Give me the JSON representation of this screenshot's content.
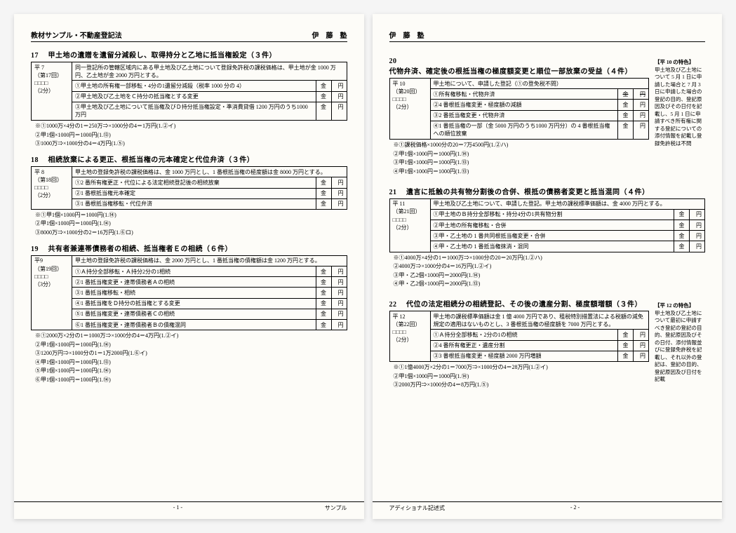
{
  "header": {
    "left_title": "教材サンプル・不動産登記法",
    "school": "伊　藤　塾"
  },
  "p1": {
    "s17": {
      "no": "17",
      "title": "甲土地の遺贈を遺留分減殺し、取得持分と乙地に抵当権設定（３件）",
      "meta": {
        "year": "平 7",
        "round": "（第17回）",
        "boxes": "□□□□",
        "time": "（2分）"
      },
      "preamble": "同一登記所の管轄区域内にある甲土地及び乙土地について登録免許税の課税価格は、甲土地が金 1000 万円、乙土地が金 2000 万円とする。",
      "rows": [
        {
          "n": "①",
          "t": "甲土地の所有権一部移転・4分の1遺留分減殺（税率 1000 分の 4）",
          "k": "金",
          "y": "円"
        },
        {
          "n": "②",
          "t": "甲土地及び乙土地をＣ持分の抵当権とする変更",
          "k": "金",
          "y": "円"
        },
        {
          "n": "③",
          "t": "甲土地及び乙土地について抵当権及びＤ持分抵当権設定・準消費貸借 1200 万円のうち1000 万円",
          "k": "金",
          "y": "円"
        }
      ],
      "notes": [
        "※①1000万×4分の1＝250万⇒×1000分の4＝1万円(1.②イ)",
        "②甲1個×1000円＝1000円(1.⑬)",
        "③1000万⇒×1000分の4＝4万円(1.⑤)"
      ]
    },
    "s18": {
      "no": "18",
      "title": "相続放棄による更正、根抵当権の元本確定と代位弁済（３件）",
      "meta": {
        "year": "平 8",
        "round": "（第18回）",
        "boxes": "□□□□",
        "time": "（2分）"
      },
      "preamble": "甲土地の登録免許税の課税価格は、金 1000 万円とし、1 番根抵当権の極度額は金 8000 万円とする。",
      "rows": [
        {
          "n": "①",
          "t": "2 番所有権更正・代位による法定相続登記後の相続放棄",
          "k": "金",
          "y": "円"
        },
        {
          "n": "②",
          "t": "1 番根抵当権元本確定",
          "k": "金",
          "y": "円"
        },
        {
          "n": "③",
          "t": "1 番根抵当権移転・代位弁済",
          "k": "金",
          "y": "円"
        }
      ],
      "notes": [
        "※①甲1個×1000円＝1000円(1.⑭)",
        "②甲1個×1000円＝1000円(1.⑭)",
        "③8000万⇒×1000分の2＝16万円(1.⑥ロ)"
      ]
    },
    "s19": {
      "no": "19",
      "title": "共有者兼連帯債務者の相続、抵当権者Ｅの相続（６件）",
      "meta": {
        "year": "平9",
        "round": "（第19回）",
        "boxes": "□□□□",
        "time": "（3分）"
      },
      "preamble": "甲土地の登録免許税の課税価格は、金 2000 万円とし、1 番抵当権の債権額は金 1200 万円とする。",
      "rows": [
        {
          "n": "①",
          "t": "Ａ持分全部移転・Ａ持分2分の1相続",
          "k": "金",
          "y": "円"
        },
        {
          "n": "②",
          "t": "1 番抵当権変更・連帯債務者Ａの相続",
          "k": "金",
          "y": "円"
        },
        {
          "n": "③",
          "t": "1 番抵当権移転・相続",
          "k": "金",
          "y": "円"
        },
        {
          "n": "④",
          "t": "1 番抵当権をＤ持分の抵当権とする変更",
          "k": "金",
          "y": "円"
        },
        {
          "n": "⑤",
          "t": "1 番抵当権変更・連帯債務者Ｃの相続",
          "k": "金",
          "y": "円"
        },
        {
          "n": "⑥",
          "t": "1 番抵当権変更・連帯債務者Ｂの債権混同",
          "k": "金",
          "y": "円"
        }
      ],
      "notes": [
        "※①2000万×2分の1＝1000万⇒×1000分の4＝4万円(1.②イ)",
        "②甲1個×1000円＝1000円(1.⑭)",
        "③1200万円⇒×1000分の1＝1万2000円(1.⑥イ)",
        "④甲1個×1000円＝1000円(1.⑬)",
        "⑤甲1個×1000円＝1000円(1.⑭)",
        "⑥甲1個×1000円＝1000円(1.⑭)"
      ]
    },
    "footer": {
      "left": "",
      "center": "- 1 -",
      "right": "サンプル"
    }
  },
  "p2": {
    "s20": {
      "no": "20",
      "title": "代物弁済、確定後の根抵当権の極度額変更と順位一部放棄の受益（４件）",
      "meta": {
        "year": "平 10",
        "round": "（第20回）",
        "boxes": "□□□□",
        "time": "（2分）"
      },
      "preamble": "甲土地について、申請した登記（①の登免税不問）",
      "rows": [
        {
          "n": "①",
          "t": "所有権移転・代物弁済",
          "k": "金",
          "y": "円"
        },
        {
          "n": "②",
          "t": "4 番根抵当権変更・極度額の減額",
          "k": "金",
          "y": "円"
        },
        {
          "n": "③",
          "t": "2 番抵当権変更・代物弁済",
          "k": "金",
          "y": "円"
        },
        {
          "n": "④",
          "t": "1 番抵当権の一部（金 5000 万円のうち1000 万円分）の 4 番根抵当権への順位放棄",
          "k": "金",
          "y": "円"
        }
      ],
      "notes": [
        "※①課税価格×1000分の20＝7万4500円(1.②ハ)",
        "②甲1個×1000円＝1000円(1.⑭)",
        "③甲1個×1000円＝1000円(1.⑬)",
        "④甲1個×1000円＝1000円(1.⑬)"
      ],
      "side": {
        "title": "【平 10 の特色】",
        "text": "甲土地及び乙土地について 5 月 1 日に申請した場合と 7 月 3 日に申請した場合の登記の目的、登記原因及びその日付を記載し、5 月 1 日に申請すべき所有権に関する登記についての添付情報を記載し登録免許税は不問"
      }
    },
    "s21": {
      "no": "21",
      "title": "遺言に抵触の共有物分割後の合併、根抵の債務者変更と抵当混同（４件）",
      "meta": {
        "year": "平 11",
        "round": "（第21回）",
        "boxes": "□□□□",
        "time": "（2分）"
      },
      "preamble": "甲土地及び乙土地について、申請した登記。甲土地の課税標準価額は、金 4000 万円とする。",
      "rows": [
        {
          "n": "①",
          "t": "甲土地のＢ持分全部移転・持分4分の1共有物分割",
          "k": "金",
          "y": "円"
        },
        {
          "n": "②",
          "t": "甲土地の所有権移転・合併",
          "k": "金",
          "y": "円"
        },
        {
          "n": "③",
          "t": "甲・乙土地の 1 番共同根抵当権変更・合併",
          "k": "金",
          "y": "円"
        },
        {
          "n": "④",
          "t": "甲・乙土地の 1 番抵当権抹消・混同",
          "k": "金",
          "y": "円"
        }
      ],
      "notes": [
        "※①4000万×4分の1＝1000万⇒×1000分の20＝20万円(1.②ハ)",
        "②4000万⇒×1000分の4＝16万円(1.②イ)",
        "③甲・乙2個×1000円＝2000円(1.⑭)",
        "④甲・乙2個×1000円＝2000円(1.⑬)"
      ]
    },
    "s22": {
      "no": "22",
      "title": "代位の法定相続分の相続登記、その後の遺産分割、極度額増額（３件）",
      "meta": {
        "year": "平 12",
        "round": "（第22回）",
        "boxes": "□□□□",
        "time": "（2分）"
      },
      "preamble": "甲土地の課税標準価額は金 1 億 4000 万円であり、租税特別措置法による税額の減免規定の適用はないものとし、3 番根抵当権の極度額を 7000 万円とする。",
      "rows": [
        {
          "n": "①",
          "t": "Ａ持分全部移転・2分の1の相続",
          "k": "金",
          "y": "円"
        },
        {
          "n": "②",
          "t": "4 番所有権更正・遺産分割",
          "k": "金",
          "y": "円"
        },
        {
          "n": "③",
          "t": "3 番根抵当権変更・極度額 2000 万円増額",
          "k": "金",
          "y": "円"
        }
      ],
      "notes": [
        "※①1億4000万×2分の1＝7000万⇒×1000分の4＝28万円(1.②イ)",
        "②甲1個×1000円＝1000円(1.⑭)",
        "③2000万円⇒×1000分の4＝8万円(1.⑤)"
      ],
      "side": {
        "title": "【平 12 の特色】",
        "text": "甲土地及び乙土地について最初に申請すべき登記の登記の目的、登記原因及びその日付、添付情報並びに登録免許税を記載し、それ以外の登記は、登記の目的、登記原因及び日付を記載"
      }
    },
    "footer": {
      "left": "アディショナル記述式",
      "center": "- 2 -",
      "right": ""
    }
  }
}
